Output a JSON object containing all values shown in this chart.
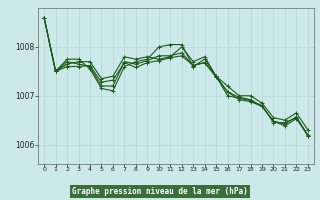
{
  "background_color": "#cce8e8",
  "label_bg_color": "#3a6e3a",
  "grid_color": "#b8d8d8",
  "line_color": "#1a5c1a",
  "title": "Graphe pression niveau de la mer (hPa)",
  "xlim": [
    -0.5,
    23.5
  ],
  "ylim": [
    1005.6,
    1008.8
  ],
  "yticks": [
    1006,
    1007,
    1008
  ],
  "xticks": [
    0,
    1,
    2,
    3,
    4,
    5,
    6,
    7,
    8,
    9,
    10,
    11,
    12,
    13,
    14,
    15,
    16,
    17,
    18,
    19,
    20,
    21,
    22,
    23
  ],
  "series": [
    [
      1008.6,
      1007.5,
      1007.65,
      1007.7,
      1007.7,
      1007.35,
      1007.4,
      1007.8,
      1007.75,
      1007.8,
      1007.75,
      1007.8,
      1008.0,
      1007.7,
      1007.8,
      1007.4,
      1007.2,
      1007.0,
      1007.0,
      1006.85,
      1006.55,
      1006.5,
      1006.65,
      1006.3
    ],
    [
      1008.6,
      1007.5,
      1007.75,
      1007.75,
      1007.55,
      1007.15,
      1007.1,
      1007.6,
      1007.7,
      1007.75,
      1008.0,
      1008.05,
      1008.05,
      1007.6,
      1007.75,
      1007.4,
      1007.0,
      1006.95,
      1006.9,
      1006.8,
      1006.45,
      1006.45,
      1006.55,
      1006.2
    ],
    [
      1008.6,
      1007.5,
      1007.7,
      1007.65,
      1007.6,
      1007.2,
      1007.2,
      1007.7,
      1007.65,
      1007.72,
      1007.82,
      1007.82,
      1007.88,
      1007.62,
      1007.68,
      1007.4,
      1007.08,
      1006.97,
      1006.92,
      1006.78,
      1006.48,
      1006.42,
      1006.57,
      1006.18
    ],
    [
      1008.6,
      1007.5,
      1007.6,
      1007.6,
      1007.62,
      1007.28,
      1007.32,
      1007.68,
      1007.58,
      1007.68,
      1007.72,
      1007.78,
      1007.82,
      1007.62,
      1007.68,
      1007.38,
      1007.08,
      1006.92,
      1006.88,
      1006.78,
      1006.48,
      1006.38,
      1006.53,
      1006.18
    ]
  ]
}
